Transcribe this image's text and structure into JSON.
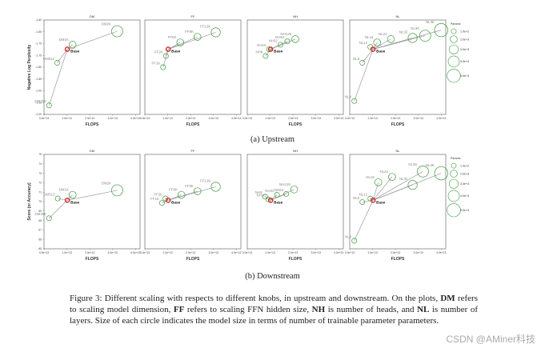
{
  "chart_data": [
    {
      "type": "scatter",
      "section": "upstream",
      "title": "DM",
      "xlabel": "FLOPS",
      "ylabel": "Negative Log Perplexity",
      "xticks": [
        "0.0e+13",
        "1.0e+13",
        "2.0e+13",
        "3.0e+13",
        "4.0e+13"
      ],
      "xlim": [
        0,
        4.2
      ],
      "yticks": [
        "-1.60",
        "-1.65",
        "-1.70",
        "-1.75",
        "-1.80",
        "-1.85",
        "-1.90",
        "-1.95",
        "-2.00"
      ],
      "ylim": [
        -2.0,
        -1.58
      ],
      "base": {
        "x": 1.02,
        "y": -1.71,
        "label": "Base"
      },
      "points": [
        {
          "label": "DM256",
          "x": 0.22,
          "y": -1.96,
          "size": 1
        },
        {
          "label": "DM512",
          "x": 0.58,
          "y": -1.77,
          "size": 1
        },
        {
          "label": "DM1K",
          "x": 1.25,
          "y": -1.69,
          "size": 2
        },
        {
          "label": "DM2K",
          "x": 3.2,
          "y": -1.63,
          "size": 4
        }
      ]
    },
    {
      "type": "scatter",
      "section": "upstream",
      "title": "FF",
      "xlabel": "FLOPS",
      "ylabel": "",
      "xticks": [
        "0.0e+13",
        "1.0e+13",
        "2.0e+13",
        "3.0e+13",
        "4.0e+13"
      ],
      "xlim": [
        0,
        4.2
      ],
      "yticks": [],
      "ylim": [
        -2.0,
        -1.58
      ],
      "base": {
        "x": 1.02,
        "y": -1.71,
        "label": "Base"
      },
      "points": [
        {
          "label": "FF1K",
          "x": 0.8,
          "y": -1.79,
          "size": 1
        },
        {
          "label": "FF2K",
          "x": 0.92,
          "y": -1.74,
          "size": 1
        },
        {
          "label": "FF6K",
          "x": 1.55,
          "y": -1.68,
          "size": 2
        },
        {
          "label": "FF8K",
          "x": 2.3,
          "y": -1.655,
          "size": 2
        },
        {
          "label": "FF12K",
          "x": 3.1,
          "y": -1.635,
          "size": 3
        }
      ]
    },
    {
      "type": "scatter",
      "section": "upstream",
      "title": "NH",
      "xlabel": "FLOPS",
      "ylabel": "",
      "xticks": [
        "0.0e+13",
        "1.0e+13",
        "2.0e+13",
        "3.0e+13",
        "4.0e+13"
      ],
      "xlim": [
        0,
        4.2
      ],
      "yticks": [],
      "ylim": [
        -2.0,
        -1.58
      ],
      "base": {
        "x": 1.02,
        "y": -1.71,
        "label": "Base"
      },
      "points": [
        {
          "label": "NH8",
          "x": 0.8,
          "y": -1.74,
          "size": 1
        },
        {
          "label": "NH16",
          "x": 0.95,
          "y": -1.71,
          "size": 1
        },
        {
          "label": "NH32",
          "x": 1.45,
          "y": -1.69,
          "size": 1
        },
        {
          "label": "NH64",
          "x": 1.75,
          "y": -1.675,
          "size": 1
        },
        {
          "label": "NH128",
          "x": 2.1,
          "y": -1.665,
          "size": 2
        }
      ]
    },
    {
      "type": "scatter",
      "section": "upstream",
      "title": "NL",
      "xlabel": "FLOPS",
      "ylabel": "",
      "xticks": [
        "0.0e+13",
        "1.0e+13",
        "2.0e+13",
        "3.0e+13",
        "4.0e+13"
      ],
      "xlim": [
        0,
        4.2
      ],
      "yticks": [],
      "ylim": [
        -2.0,
        -1.58
      ],
      "base": {
        "x": 1.02,
        "y": -1.71,
        "label": "Base"
      },
      "points": [
        {
          "label": "NL4",
          "x": 0.2,
          "y": -1.94,
          "size": 1
        },
        {
          "label": "NL8",
          "x": 0.55,
          "y": -1.77,
          "size": 1
        },
        {
          "label": "NL12",
          "x": 0.9,
          "y": -1.7,
          "size": 1
        },
        {
          "label": "NL16",
          "x": 1.2,
          "y": -1.68,
          "size": 2
        },
        {
          "label": "NL24",
          "x": 1.8,
          "y": -1.665,
          "size": 2
        },
        {
          "label": "NL32",
          "x": 2.75,
          "y": -1.66,
          "size": 3
        },
        {
          "label": "NL36",
          "x": 3.3,
          "y": -1.65,
          "size": 4
        },
        {
          "label": "NL48",
          "x": 4.0,
          "y": -1.625,
          "size": 5
        }
      ],
      "legend": {
        "title": "Params",
        "position": "right",
        "entries": [
          "1.0e+2",
          "2.0e+3",
          "3.0e+3",
          "4.0e+3",
          "5.0e+3"
        ]
      }
    },
    {
      "type": "scatter",
      "section": "downstream",
      "title": "DM",
      "xlabel": "FLOPS",
      "ylabel": "Score (or Accuracy)",
      "xticks": [
        "0.0e+13",
        "1.0e+13",
        "2.0e+13",
        "3.0e+13",
        "4.0e+13"
      ],
      "xlim": [
        0,
        4.2
      ],
      "yticks": [
        "75",
        "74",
        "73",
        "72",
        "71",
        "70",
        "69",
        "68",
        "67",
        "66",
        "65"
      ],
      "ylim": [
        65,
        75.5
      ],
      "base": {
        "x": 1.02,
        "y": 70.4,
        "label": "Base"
      },
      "points": [
        {
          "label": "DM256",
          "x": 0.22,
          "y": 68.4,
          "size": 1
        },
        {
          "label": "DM512",
          "x": 0.6,
          "y": 70.6,
          "size": 1
        },
        {
          "label": "DM1K",
          "x": 1.25,
          "y": 71.0,
          "size": 2
        },
        {
          "label": "DM2K",
          "x": 3.2,
          "y": 71.5,
          "size": 4
        }
      ]
    },
    {
      "type": "scatter",
      "section": "downstream",
      "title": "FF",
      "xlabel": "FLOPS",
      "ylabel": "",
      "xticks": [
        "0.0e+13",
        "1.0e+13",
        "2.0e+13",
        "3.0e+13",
        "4.0e+13"
      ],
      "xlim": [
        0,
        4.2
      ],
      "yticks": [],
      "ylim": [
        65,
        75.5
      ],
      "base": {
        "x": 1.02,
        "y": 70.4,
        "label": "Base"
      },
      "points": [
        {
          "label": "FF1K",
          "x": 0.75,
          "y": 70.1,
          "size": 1
        },
        {
          "label": "FF2K",
          "x": 0.9,
          "y": 70.6,
          "size": 1
        },
        {
          "label": "FF6K",
          "x": 1.6,
          "y": 71.0,
          "size": 2
        },
        {
          "label": "FF8K",
          "x": 2.3,
          "y": 71.4,
          "size": 2
        },
        {
          "label": "FF12K",
          "x": 3.1,
          "y": 71.9,
          "size": 3
        }
      ]
    },
    {
      "type": "scatter",
      "section": "downstream",
      "title": "NH",
      "xlabel": "FLOPS",
      "ylabel": "",
      "xticks": [
        "0.0e+13",
        "1.0e+13",
        "2.0e+13",
        "3.0e+13",
        "4.0e+13"
      ],
      "xlim": [
        0,
        4.2
      ],
      "yticks": [],
      "ylim": [
        65,
        75.5
      ],
      "base": {
        "x": 1.02,
        "y": 70.4,
        "label": "Base"
      },
      "points": [
        {
          "label": "NH8",
          "x": 0.78,
          "y": 70.8,
          "size": 1
        },
        {
          "label": "NH16",
          "x": 0.92,
          "y": 70.5,
          "size": 1
        },
        {
          "label": "NH32",
          "x": 1.3,
          "y": 71.0,
          "size": 1
        },
        {
          "label": "NH64",
          "x": 1.7,
          "y": 71.1,
          "size": 1
        },
        {
          "label": "NH128",
          "x": 2.05,
          "y": 71.6,
          "size": 2
        }
      ]
    },
    {
      "type": "scatter",
      "section": "downstream",
      "title": "NL",
      "xlabel": "FLOPS",
      "ylabel": "",
      "xticks": [
        "0.0e+13",
        "1.0e+13",
        "2.0e+13",
        "3.0e+13",
        "4.0e+13"
      ],
      "xlim": [
        0,
        4.2
      ],
      "yticks": [],
      "ylim": [
        65,
        75.5
      ],
      "base": {
        "x": 1.02,
        "y": 70.4,
        "label": "Base"
      },
      "points": [
        {
          "label": "NL4",
          "x": 0.2,
          "y": 65.9,
          "size": 1
        },
        {
          "label": "NL8",
          "x": 0.55,
          "y": 70.2,
          "size": 1
        },
        {
          "label": "NL12",
          "x": 0.9,
          "y": 70.6,
          "size": 1
        },
        {
          "label": "NL16",
          "x": 1.25,
          "y": 72.4,
          "size": 2
        },
        {
          "label": "NL24",
          "x": 1.85,
          "y": 73.0,
          "size": 2
        },
        {
          "label": "NL32",
          "x": 2.75,
          "y": 72.1,
          "size": 3
        },
        {
          "label": "NL36",
          "x": 3.2,
          "y": 73.6,
          "size": 4
        },
        {
          "label": "NL48",
          "x": 4.0,
          "y": 73.4,
          "size": 5
        }
      ],
      "legend": {
        "title": "Params",
        "position": "right",
        "entries": [
          "1.0e+2",
          "2.0e+3",
          "3.0e+3",
          "4.0e+3",
          "5.0e+3"
        ]
      }
    }
  ],
  "colors": {
    "base": "#d62728",
    "point": "#3a9a3a",
    "line": "#9a9a9a"
  },
  "subcaptions": {
    "upstream": "(a) Upstream",
    "downstream": "(b) Downstream"
  },
  "caption": {
    "p1": "Figure 3: Different scaling with respects to different knobs, in upstream and downstream. On the plots, ",
    "b1": "DM",
    "p2": " refers to scaling model dimension, ",
    "b2": "FF",
    "p3": " refers to scaling FFN hidden size, ",
    "b3": "NH",
    "p4": " is number of heads, and ",
    "b4": "NL",
    "p5": " is number of layers. Size of each circle indicates the model size in terms of number of trainable parameter parameters."
  },
  "watermark": "CSDN @AMiner科技"
}
